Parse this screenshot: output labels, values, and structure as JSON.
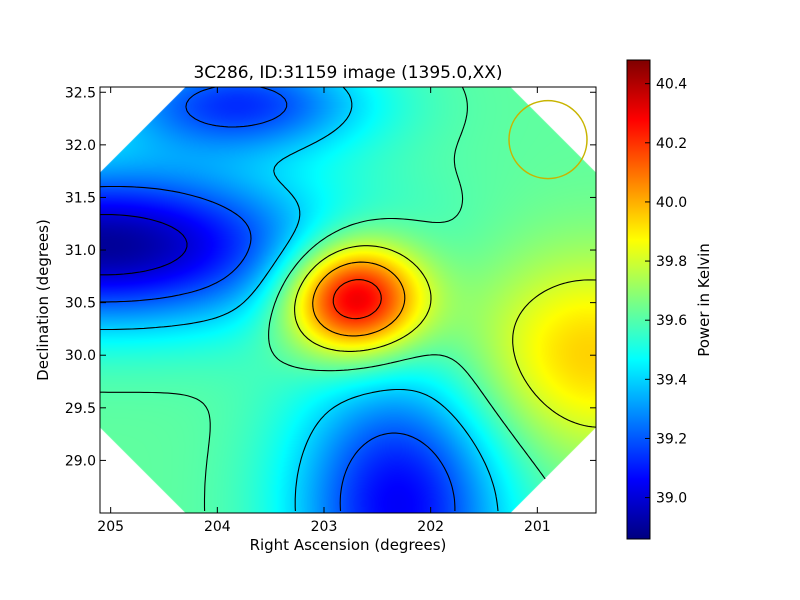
{
  "chart_data": {
    "type": "heatmap",
    "title": "3C286, ID:31159 image (1395.0,XX)",
    "xlabel": "Right Ascension (degrees)",
    "ylabel": "Declination (degrees)",
    "xlim": [
      205.1,
      200.45
    ],
    "ylim": [
      28.5,
      32.55
    ],
    "x_ticks": [
      205,
      204,
      203,
      202,
      201
    ],
    "x_tick_labels": [
      "205",
      "204",
      "203",
      "202",
      "201"
    ],
    "y_ticks": [
      29.0,
      29.5,
      30.0,
      30.5,
      31.0,
      31.5,
      32.0,
      32.5
    ],
    "y_tick_labels": [
      "29.0",
      "29.5",
      "30.0",
      "30.5",
      "31.0",
      "31.5",
      "32.0",
      "32.5"
    ],
    "colorbar": {
      "label": "Power in Kelvin",
      "range": [
        38.86,
        40.48
      ],
      "ticks": [
        39.0,
        39.2,
        39.4,
        39.6,
        39.8,
        40.0,
        40.2,
        40.4
      ],
      "tick_labels": [
        "39.0",
        "39.2",
        "39.4",
        "39.6",
        "39.8",
        "40.0",
        "40.2",
        "40.4"
      ],
      "colormap": "jet"
    },
    "features": [
      {
        "ra": 202.72,
        "dec": 30.55,
        "value": 40.45,
        "kind": "peak"
      },
      {
        "ra": 205.05,
        "dec": 31.05,
        "value": 38.9,
        "kind": "minimum"
      },
      {
        "ra": 202.3,
        "dec": 28.6,
        "value": 39.05,
        "kind": "minimum"
      },
      {
        "ra": 200.55,
        "dec": 30.0,
        "value": 39.95,
        "kind": "peak"
      },
      {
        "ra": 203.8,
        "dec": 32.4,
        "value": 39.15,
        "kind": "minimum"
      }
    ],
    "background_value": 39.62,
    "beam_circle": {
      "ra": 200.9,
      "dec": 32.05,
      "color": "#c8b400"
    },
    "grid": false
  }
}
